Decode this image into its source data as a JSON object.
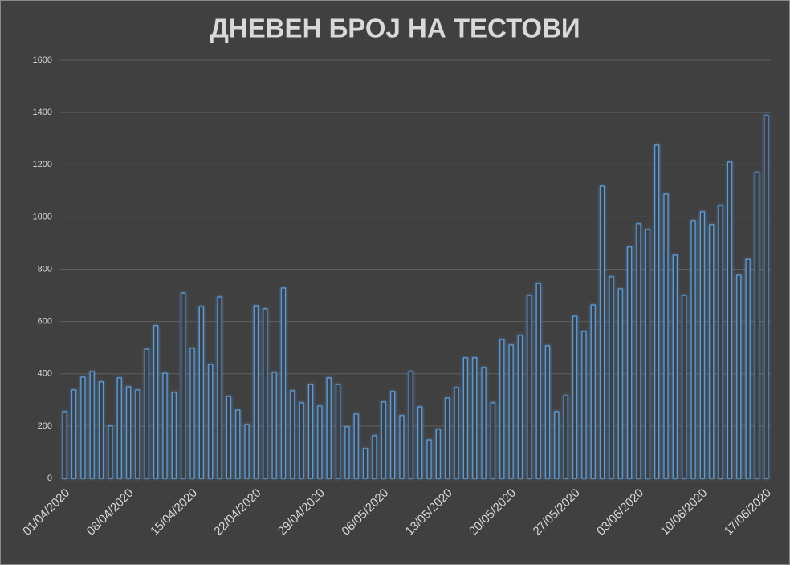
{
  "chart_data": {
    "type": "bar",
    "title": "ДНЕВЕН БРОЈ НА ТЕСТОВИ",
    "categories": [
      "01/04/2020",
      null,
      null,
      null,
      null,
      null,
      null,
      "08/04/2020",
      null,
      null,
      null,
      null,
      null,
      null,
      "15/04/2020",
      null,
      null,
      null,
      null,
      null,
      null,
      "22/04/2020",
      null,
      null,
      null,
      null,
      null,
      null,
      "29/04/2020",
      null,
      null,
      null,
      null,
      null,
      null,
      "06/05/2020",
      null,
      null,
      null,
      null,
      null,
      null,
      "13/05/2020",
      null,
      null,
      null,
      null,
      null,
      null,
      "20/05/2020",
      null,
      null,
      null,
      null,
      null,
      null,
      "27/05/2020",
      null,
      null,
      null,
      null,
      null,
      null,
      "03/06/2020",
      null,
      null,
      null,
      null,
      null,
      null,
      "10/06/2020",
      null,
      null,
      null,
      null,
      null,
      null,
      "17/06/2020"
    ],
    "values": [
      255,
      338,
      387,
      408,
      369,
      200,
      384,
      350,
      338,
      494,
      584,
      402,
      329,
      709,
      498,
      657,
      436,
      694,
      313,
      261,
      206,
      660,
      648,
      405,
      728,
      335,
      289,
      359,
      276,
      384,
      359,
      197,
      246,
      114,
      163,
      292,
      332,
      240,
      408,
      273,
      147,
      187,
      307,
      347,
      461,
      461,
      424,
      289,
      531,
      510,
      547,
      700,
      746,
      507,
      255,
      316,
      620,
      562,
      663,
      1118,
      771,
      725,
      885,
      974,
      952,
      1275,
      1087,
      854,
      700,
      986,
      1020,
      971,
      1044,
      1210,
      777,
      838,
      1170,
      1388
    ],
    "color": "#5b9bd5",
    "ylim": [
      0,
      1600
    ],
    "yticks": [
      0,
      200,
      400,
      600,
      800,
      1000,
      1200,
      1400,
      1600
    ],
    "grid": true
  }
}
